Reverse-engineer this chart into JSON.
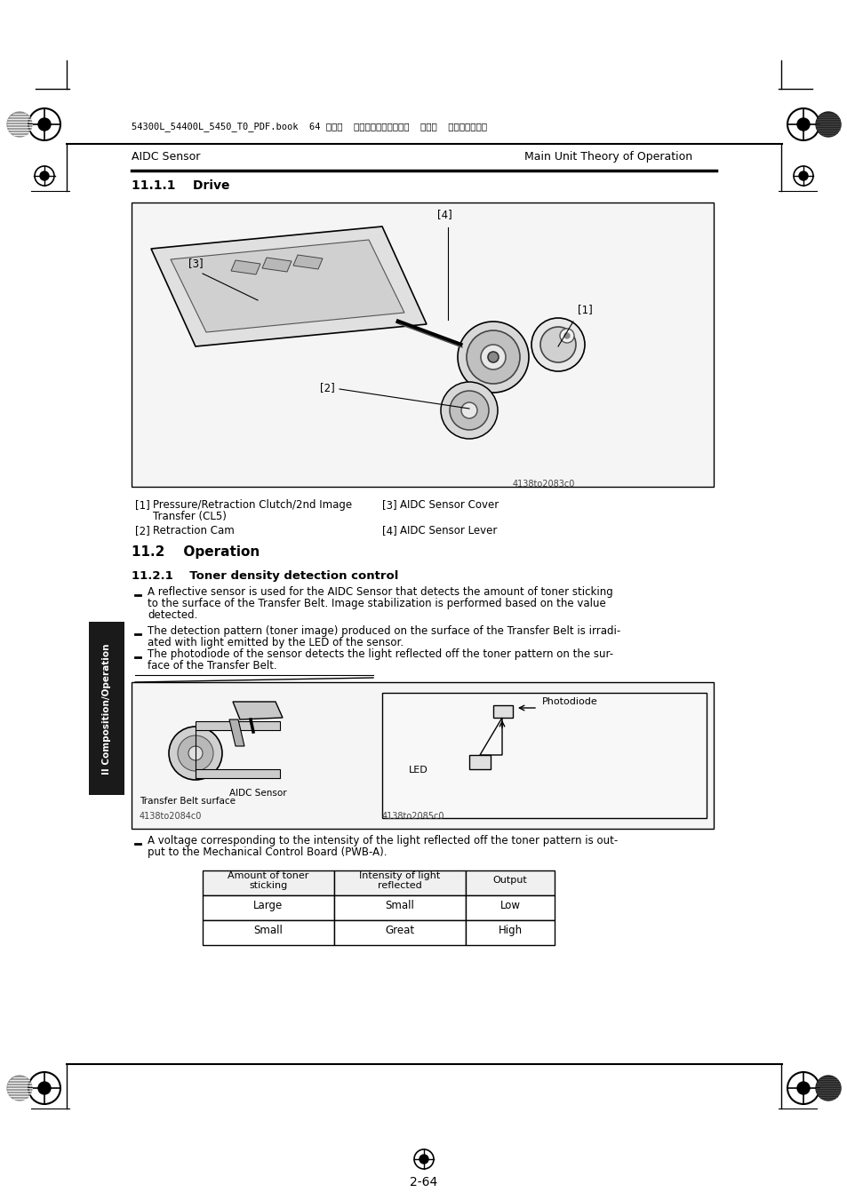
{
  "page_bg": "#ffffff",
  "header_left": "AIDC Sensor",
  "header_right": "Main Unit Theory of Operation",
  "section_title": "11.1.1    Drive",
  "section2_title": "11.2    Operation",
  "section2_sub": "11.2.1    Toner density detection control",
  "caption_header_text": "54300L_54400L_5450_T0_PDF.book  64 ページ  ２００５年４月１２日  火曜日  午後４時４９分",
  "footnote1_num": "[1]",
  "footnote1_text_a": "Pressure/Retraction Clutch/2nd Image",
  "footnote1_text_b": "Transfer (CL5)",
  "footnote2_num": "[2]",
  "footnote2_text": "Retraction Cam",
  "footnote3_num": "[3]",
  "footnote3_text": "AIDC Sensor Cover",
  "footnote4_num": "[4]",
  "footnote4_text": "AIDC Sensor Lever",
  "bullet1_a": "A reflective sensor is used for the AIDC Sensor that detects the amount of toner sticking",
  "bullet1_b": "to the surface of the Transfer Belt. Image stabilization is performed based on the value",
  "bullet1_c": "detected.",
  "bullet2_a": "The detection pattern (toner image) produced on the surface of the Transfer Belt is irradi-",
  "bullet2_b": "ated with light emitted by the LED of the sensor.",
  "bullet3_a": "The photodiode of the sensor detects the light reflected off the toner pattern on the sur-",
  "bullet3_b": "face of the Transfer Belt.",
  "voltage_note_a": "A voltage corresponding to the intensity of the light reflected off the toner pattern is out-",
  "voltage_note_b": "put to the Mechanical Control Board (PWB-A).",
  "table_header1": "Amount of toner\nsticking",
  "table_header2": "Intensity of light\nreflected",
  "table_header3": "Output",
  "table_row1": [
    "Large",
    "Small",
    "Low"
  ],
  "table_row2": [
    "Small",
    "Great",
    "High"
  ],
  "page_number": "2-64",
  "sidebar_text": "II Composition/Operation",
  "img1_caption": "4138to2083c0",
  "img2_left_caption": "Transfer Belt surface",
  "img2_mid_caption": "AIDC Sensor",
  "img2_right_label1": "Photodiode",
  "img2_right_label2": "LED",
  "img2_left_code": "4138to2084c0",
  "img2_right_code": "4138to2085c0",
  "font_color": "#000000",
  "gray_color": "#444444",
  "sidebar_bg": "#1a1a1a",
  "sidebar_text_color": "#ffffff",
  "header_divider_color": "#000000"
}
